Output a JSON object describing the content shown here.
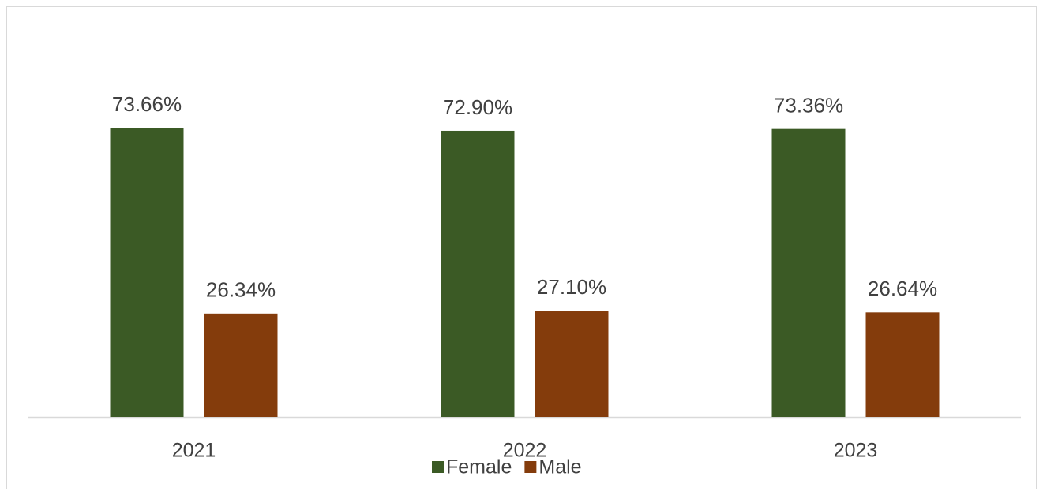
{
  "chart_data": {
    "type": "bar",
    "categories": [
      "2021",
      "2022",
      "2023"
    ],
    "series": [
      {
        "name": "Female",
        "color": "#3b5a25",
        "values": [
          73.66,
          72.9,
          73.36
        ],
        "value_labels": [
          "73.66%",
          "72.90%",
          "73.36%"
        ]
      },
      {
        "name": "Male",
        "color": "#843c0c",
        "values": [
          26.34,
          27.1,
          26.64
        ],
        "value_labels": [
          "26.34%",
          "27.10%",
          "26.64%"
        ]
      }
    ],
    "legend": "bottom"
  }
}
